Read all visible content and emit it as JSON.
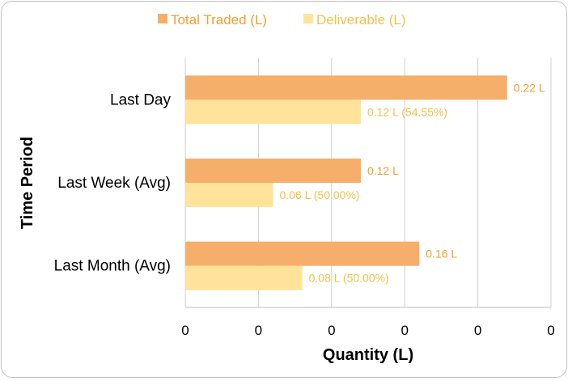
{
  "chart_data": {
    "type": "bar",
    "orientation": "horizontal",
    "categories": [
      "Last Day",
      "Last Week (Avg)",
      "Last Month (Avg)"
    ],
    "series": [
      {
        "name": "Total Traded (L)",
        "values": [
          0.22,
          0.12,
          0.16
        ],
        "labels": [
          "0.22 L",
          "0.12 L",
          "0.16 L"
        ],
        "color": "#F5AF6A",
        "label_color": "#F0A030"
      },
      {
        "name": "Deliverable (L)",
        "values": [
          0.12,
          0.06,
          0.08
        ],
        "labels": [
          "0.12 L (54.55%)",
          "0.06 L (50.00%)",
          "0.08 L (50.00%)"
        ],
        "color": "#FFE39A",
        "label_color": "#F2C24A"
      }
    ],
    "xlabel": "Quantity (L)",
    "ylabel": "Time Period",
    "xlim": [
      0,
      0.25
    ],
    "x_ticks": [
      0,
      0.05,
      0.1,
      0.15,
      0.2,
      0.25
    ],
    "x_tick_labels": [
      "0",
      "0",
      "0",
      "0",
      "0",
      "0"
    ],
    "grid": true,
    "legend_position": "top"
  }
}
